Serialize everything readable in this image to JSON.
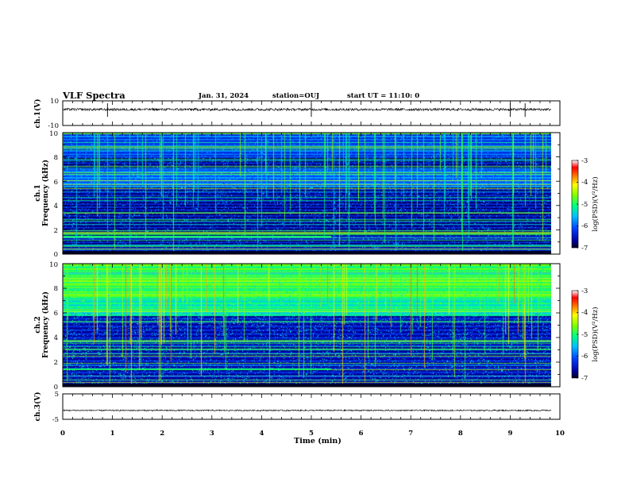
{
  "header": {
    "title": "VLF Spectra",
    "date": "Jan. 31, 2024",
    "station": "station=OUJ",
    "start": "start UT =  11:10: 0"
  },
  "chart_data": [
    {
      "type": "line",
      "panel": "ch1-waveform",
      "ylabel": "ch.1(V)",
      "ylim": [
        -10,
        10
      ],
      "yticks": [
        "10",
        "-10"
      ],
      "xlim": [
        0,
        10
      ],
      "baseline": 3,
      "color": "#000000"
    },
    {
      "type": "heatmap",
      "panel": "ch1-spectrogram",
      "ylabel_line1": "ch.1",
      "ylabel_line2": "Frequency (kHz)",
      "ylim": [
        0,
        10
      ],
      "yticks": [
        "0",
        "2",
        "4",
        "6",
        "8",
        "10"
      ],
      "xlim": [
        0,
        10
      ],
      "data_end_min": 9.83,
      "colorbar": {
        "label": "log(PSD)(V²/Hz)",
        "range": [
          -7,
          -3
        ],
        "ticks": [
          "-3",
          "-4",
          "-5",
          "-6",
          "-7"
        ]
      }
    },
    {
      "type": "heatmap",
      "panel": "ch2-spectrogram",
      "ylabel_line1": "ch.2",
      "ylabel_line2": "Frequency (kHz)",
      "ylim": [
        0,
        10
      ],
      "yticks": [
        "0",
        "2",
        "4",
        "6",
        "8",
        "10"
      ],
      "xlim": [
        0,
        10
      ],
      "data_end_min": 9.83,
      "colorbar": {
        "label": "log(PSD)(V²/Hz)",
        "range": [
          -7,
          -3
        ],
        "ticks": [
          "-3",
          "-4",
          "-5",
          "-6",
          "-7"
        ]
      }
    },
    {
      "type": "line",
      "panel": "ch3-waveform",
      "ylabel": "ch.3(V)",
      "ylim": [
        -5,
        5
      ],
      "yticks": [
        "5",
        "0",
        "-5"
      ],
      "xlim": [
        0,
        10
      ],
      "baseline": -1.5,
      "color": "#000000"
    }
  ],
  "xaxis": {
    "label": "Time (min)",
    "ticks": [
      "0",
      "1",
      "2",
      "3",
      "4",
      "5",
      "6",
      "7",
      "8",
      "9",
      "10"
    ]
  }
}
